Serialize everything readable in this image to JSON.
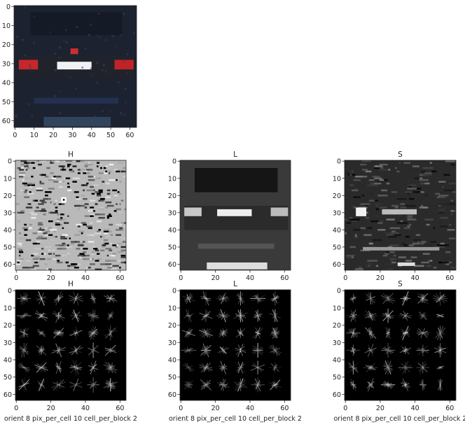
{
  "chart_data": [
    {
      "type": "image",
      "xlim": [
        -0.5,
        63.5
      ],
      "ylim": [
        63.5,
        -0.5
      ],
      "xticks": [
        0,
        10,
        20,
        30,
        40,
        50,
        60
      ],
      "yticks": [
        0,
        10,
        20,
        30,
        40,
        50,
        60
      ]
    },
    {
      "type": "image",
      "title": "H",
      "xlim": [
        -0.5,
        63.5
      ],
      "ylim": [
        63.5,
        -0.5
      ],
      "xticks": [
        0,
        20,
        40,
        60
      ],
      "yticks": [
        0,
        10,
        20,
        30,
        40,
        50,
        60
      ]
    },
    {
      "type": "image",
      "title": "L",
      "xlim": [
        -0.5,
        63.5
      ],
      "ylim": [
        63.5,
        -0.5
      ],
      "xticks": [
        0,
        20,
        40,
        60
      ],
      "yticks": [
        0,
        10,
        20,
        30,
        40,
        50,
        60
      ]
    },
    {
      "type": "image",
      "title": "S",
      "xlim": [
        -0.5,
        63.5
      ],
      "ylim": [
        63.5,
        -0.5
      ],
      "xticks": [
        0,
        20,
        40,
        60
      ],
      "yticks": [
        0,
        10,
        20,
        30,
        40,
        50,
        60
      ]
    },
    {
      "type": "image",
      "title": "H",
      "xlabel": "orient 8 pix_per_cell 10 cell_per_block 2",
      "xlim": [
        -0.5,
        63.5
      ],
      "ylim": [
        63.5,
        -0.5
      ],
      "xticks": [
        0,
        20,
        40,
        60
      ],
      "yticks": [
        0,
        10,
        20,
        30,
        40,
        50,
        60
      ]
    },
    {
      "type": "image",
      "title": "L",
      "xlabel": "orient 8 pix_per_cell 10 cell_per_block 2",
      "xlim": [
        -0.5,
        63.5
      ],
      "ylim": [
        63.5,
        -0.5
      ],
      "xticks": [
        0,
        20,
        40,
        60
      ],
      "yticks": [
        0,
        10,
        20,
        30,
        40,
        50,
        60
      ]
    },
    {
      "type": "image",
      "title": "S",
      "xlabel": "orient 8 pix_per_cell 10 cell_per_block 2",
      "xlim": [
        -0.5,
        63.5
      ],
      "ylim": [
        63.5,
        -0.5
      ],
      "xticks": [
        0,
        20,
        40,
        60
      ],
      "yticks": [
        0,
        10,
        20,
        30,
        40,
        50,
        60
      ]
    }
  ]
}
